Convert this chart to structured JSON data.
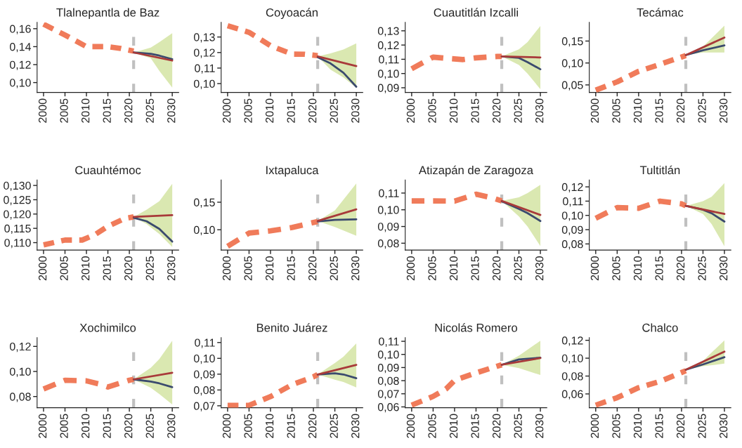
{
  "chart_data": [
    {
      "type": "line",
      "title": "Tlalnepantla de Baz",
      "xlim": [
        1998.5,
        2031.5
      ],
      "xticks": [
        2000,
        2005,
        2010,
        2015,
        2020,
        2025,
        2030
      ],
      "ylim": [
        0.089,
        0.167
      ],
      "yticks": [
        {
          "value": 0.1,
          "label": "0,10"
        },
        {
          "value": 0.12,
          "label": "0,12"
        },
        {
          "value": 0.14,
          "label": "0,14"
        },
        {
          "value": 0.16,
          "label": "0,16"
        }
      ],
      "ref_lines": [
        {
          "axis": "x",
          "value": 2021,
          "color": "#c0c0c0",
          "line_style": "dashed"
        }
      ],
      "series": [
        {
          "color": "#f07b5a",
          "line_style": "dashed",
          "x": [
            2000,
            2005,
            2010,
            2012,
            2015,
            2018,
            2021
          ],
          "values": [
            0.165,
            0.153,
            0.14,
            0.14,
            0.14,
            0.138,
            0.135
          ]
        },
        {
          "color": "#3b4a6e",
          "line_style": "solid",
          "x": [
            2021,
            2025,
            2027,
            2030
          ],
          "values": [
            0.1335,
            0.132,
            0.13,
            0.126
          ],
          "lower": [
            0.1335,
            0.127,
            0.113,
            0.0945
          ],
          "upper": [
            0.1335,
            0.139,
            0.145,
            0.155
          ]
        },
        {
          "color": "#a83a3a",
          "line_style": "solid",
          "x": [
            2021,
            2030
          ],
          "values": [
            0.1335,
            0.1245
          ]
        }
      ]
    },
    {
      "type": "line",
      "title": "Coyoacán",
      "xlim": [
        1998.5,
        2031.5
      ],
      "xticks": [
        2000,
        2005,
        2010,
        2015,
        2020,
        2025,
        2030
      ],
      "ylim": [
        0.0943,
        0.1394
      ],
      "yticks": [
        {
          "value": 0.1,
          "label": "0,10"
        },
        {
          "value": 0.11,
          "label": "0,11"
        },
        {
          "value": 0.12,
          "label": "0,12"
        },
        {
          "value": 0.13,
          "label": "0,13"
        }
      ],
      "ref_lines": [
        {
          "axis": "x",
          "value": 2021,
          "color": "#c0c0c0",
          "line_style": "dashed"
        }
      ],
      "series": [
        {
          "color": "#f07b5a",
          "line_style": "dashed",
          "x": [
            2000,
            2005,
            2010,
            2015,
            2018,
            2021
          ],
          "values": [
            0.1373,
            0.133,
            0.1244,
            0.119,
            0.1189,
            0.118
          ]
        },
        {
          "color": "#3b4a6e",
          "line_style": "solid",
          "x": [
            2021,
            2024,
            2027,
            2030
          ],
          "values": [
            0.117,
            0.113,
            0.107,
            0.098
          ],
          "lower": [
            0.1175,
            0.109,
            0.104,
            0.0973
          ],
          "upper": [
            0.1175,
            0.1195,
            0.122,
            0.1259
          ]
        },
        {
          "color": "#a83a3a",
          "line_style": "solid",
          "x": [
            2021,
            2030
          ],
          "values": [
            0.1175,
            0.1113
          ]
        }
      ]
    },
    {
      "type": "line",
      "title": "Cuautitlán Izcalli",
      "xlim": [
        1998.5,
        2031.5
      ],
      "xticks": [
        2000,
        2005,
        2010,
        2015,
        2020,
        2025,
        2030
      ],
      "ylim": [
        0.0867,
        0.1359
      ],
      "yticks": [
        {
          "value": 0.09,
          "label": "0,09"
        },
        {
          "value": 0.1,
          "label": "0,10"
        },
        {
          "value": 0.11,
          "label": "0,11"
        },
        {
          "value": 0.12,
          "label": "0,12"
        },
        {
          "value": 0.13,
          "label": "0,13"
        }
      ],
      "ref_lines": [
        {
          "axis": "x",
          "value": 2021,
          "color": "#c0c0c0",
          "line_style": "dashed"
        }
      ],
      "series": [
        {
          "color": "#f07b5a",
          "line_style": "dashed",
          "x": [
            2000,
            2005,
            2008,
            2012,
            2015,
            2020,
            2021
          ],
          "values": [
            0.1033,
            0.1115,
            0.1107,
            0.1098,
            0.111,
            0.112,
            0.112
          ]
        },
        {
          "color": "#3b4a6e",
          "line_style": "solid",
          "x": [
            2021,
            2025,
            2027,
            2030
          ],
          "values": [
            0.112,
            0.111,
            0.108,
            0.103
          ],
          "lower": [
            0.112,
            0.106,
            0.1,
            0.089
          ],
          "upper": [
            0.112,
            0.117,
            0.122,
            0.1334
          ]
        },
        {
          "color": "#a83a3a",
          "line_style": "solid",
          "x": [
            2021,
            2030
          ],
          "values": [
            0.112,
            0.1113
          ]
        }
      ]
    },
    {
      "type": "line",
      "title": "Tecámac",
      "xlim": [
        1998.5,
        2031.5
      ],
      "xticks": [
        2000,
        2005,
        2010,
        2015,
        2020,
        2025,
        2030
      ],
      "ylim": [
        0.0328,
        0.1925
      ],
      "yticks": [
        {
          "value": 0.05,
          "label": "0,05"
        },
        {
          "value": 0.1,
          "label": "0,10"
        },
        {
          "value": 0.15,
          "label": "0,15"
        }
      ],
      "ref_lines": [
        {
          "axis": "x",
          "value": 2021,
          "color": "#c0c0c0",
          "line_style": "dashed"
        }
      ],
      "series": [
        {
          "color": "#f07b5a",
          "line_style": "dashed",
          "x": [
            2000,
            2005,
            2010,
            2015,
            2021
          ],
          "values": [
            0.038,
            0.057,
            0.081,
            0.097,
            0.117
          ]
        },
        {
          "color": "#3b4a6e",
          "line_style": "solid",
          "x": [
            2021,
            2025,
            2030
          ],
          "values": [
            0.118,
            0.129,
            0.14
          ],
          "lower": [
            0.118,
            0.124,
            0.124
          ],
          "upper": [
            0.118,
            0.137,
            0.185
          ]
        },
        {
          "color": "#a83a3a",
          "line_style": "solid",
          "x": [
            2021,
            2030
          ],
          "values": [
            0.118,
            0.158
          ]
        }
      ]
    },
    {
      "type": "line",
      "title": "Cuauhtémoc",
      "xlim": [
        1998.5,
        2031.5
      ],
      "xticks": [
        2000,
        2005,
        2010,
        2015,
        2020,
        2025,
        2030
      ],
      "ylim": [
        0.1074,
        0.1319
      ],
      "yticks": [
        {
          "value": 0.11,
          "label": "0,110"
        },
        {
          "value": 0.115,
          "label": "0,115"
        },
        {
          "value": 0.12,
          "label": "0,120"
        },
        {
          "value": 0.125,
          "label": "0,125"
        },
        {
          "value": 0.13,
          "label": "0,130"
        }
      ],
      "ref_lines": [
        {
          "axis": "x",
          "value": 2021,
          "color": "#c0c0c0",
          "line_style": "dashed"
        }
      ],
      "series": [
        {
          "color": "#f07b5a",
          "line_style": "dashed",
          "x": [
            2000,
            2005,
            2009,
            2012,
            2015,
            2019,
            2021
          ],
          "values": [
            0.1092,
            0.1109,
            0.1109,
            0.1128,
            0.1157,
            0.1185,
            0.119
          ]
        },
        {
          "color": "#3b4a6e",
          "line_style": "solid",
          "x": [
            2021,
            2024,
            2027,
            2030
          ],
          "values": [
            0.1187,
            0.1175,
            0.1148,
            0.1104
          ],
          "lower": [
            0.119,
            0.1165,
            0.113,
            0.1085
          ],
          "upper": [
            0.119,
            0.1215,
            0.1245,
            0.1306
          ]
        },
        {
          "color": "#a83a3a",
          "line_style": "solid",
          "x": [
            2021,
            2030
          ],
          "values": [
            0.119,
            0.1196
          ]
        }
      ]
    },
    {
      "type": "line",
      "title": "Ixtapaluca",
      "xlim": [
        1998.5,
        2031.5
      ],
      "xticks": [
        2000,
        2005,
        2010,
        2015,
        2020,
        2025,
        2030
      ],
      "ylim": [
        0.0631,
        0.1903
      ],
      "yticks": [
        {
          "value": 0.1,
          "label": "0,10"
        },
        {
          "value": 0.15,
          "label": "0,15"
        }
      ],
      "ref_lines": [
        {
          "axis": "x",
          "value": 2021,
          "color": "#c0c0c0",
          "line_style": "dashed"
        }
      ],
      "series": [
        {
          "color": "#f07b5a",
          "line_style": "dashed",
          "x": [
            2000,
            2005,
            2010,
            2015,
            2021
          ],
          "values": [
            0.07,
            0.094,
            0.098,
            0.104,
            0.115
          ]
        },
        {
          "color": "#3b4a6e",
          "line_style": "solid",
          "x": [
            2021,
            2025,
            2030
          ],
          "values": [
            0.115,
            0.118,
            0.119
          ],
          "lower": [
            0.116,
            0.105,
            0.089
          ],
          "upper": [
            0.116,
            0.135,
            0.184
          ]
        },
        {
          "color": "#a83a3a",
          "line_style": "solid",
          "x": [
            2021,
            2030
          ],
          "values": [
            0.116,
            0.137
          ]
        }
      ]
    },
    {
      "type": "line",
      "title": "Atizapán de Zaragoza",
      "xlim": [
        1998.5,
        2031.5
      ],
      "xticks": [
        2000,
        2005,
        2010,
        2015,
        2020,
        2025,
        2030
      ],
      "ylim": [
        0.0759,
        0.1178
      ],
      "yticks": [
        {
          "value": 0.08,
          "label": "0,08"
        },
        {
          "value": 0.09,
          "label": "0,09"
        },
        {
          "value": 0.1,
          "label": "0,10"
        },
        {
          "value": 0.11,
          "label": "0,11"
        }
      ],
      "ref_lines": [
        {
          "axis": "x",
          "value": 2021,
          "color": "#c0c0c0",
          "line_style": "dashed"
        }
      ],
      "series": [
        {
          "color": "#f07b5a",
          "line_style": "dashed",
          "x": [
            2000,
            2005,
            2010,
            2015,
            2019,
            2021
          ],
          "values": [
            0.1053,
            0.1053,
            0.1052,
            0.1093,
            0.107,
            0.1053
          ]
        },
        {
          "color": "#3b4a6e",
          "line_style": "solid",
          "x": [
            2021,
            2025,
            2027,
            2030
          ],
          "values": [
            0.105,
            0.1005,
            0.098,
            0.0933
          ],
          "lower": [
            0.1053,
            0.096,
            0.09,
            0.0783
          ],
          "upper": [
            0.1053,
            0.1075,
            0.11,
            0.1149
          ]
        },
        {
          "color": "#a83a3a",
          "line_style": "solid",
          "x": [
            2021,
            2030
          ],
          "values": [
            0.1053,
            0.0969
          ]
        }
      ]
    },
    {
      "type": "line",
      "title": "Tultitlán",
      "xlim": [
        1998.5,
        2031.5
      ],
      "xticks": [
        2000,
        2005,
        2010,
        2015,
        2020,
        2025,
        2030
      ],
      "ylim": [
        0.0757,
        0.1248
      ],
      "yticks": [
        {
          "value": 0.08,
          "label": "0,08"
        },
        {
          "value": 0.09,
          "label": "0,09"
        },
        {
          "value": 0.1,
          "label": "0,10"
        },
        {
          "value": 0.11,
          "label": "0,11"
        },
        {
          "value": 0.12,
          "label": "0,12"
        }
      ],
      "ref_lines": [
        {
          "axis": "x",
          "value": 2021,
          "color": "#c0c0c0",
          "line_style": "dashed"
        }
      ],
      "series": [
        {
          "color": "#f07b5a",
          "line_style": "dashed",
          "x": [
            2000,
            2005,
            2010,
            2015,
            2020,
            2021
          ],
          "values": [
            0.098,
            0.1055,
            0.105,
            0.11,
            0.1081,
            0.1067
          ]
        },
        {
          "color": "#3b4a6e",
          "line_style": "solid",
          "x": [
            2021,
            2025,
            2027,
            2030
          ],
          "values": [
            0.1067,
            0.104,
            0.1015,
            0.0957
          ],
          "lower": [
            0.1067,
            0.101,
            0.094,
            0.0783
          ],
          "upper": [
            0.1067,
            0.11,
            0.113,
            0.1226
          ]
        },
        {
          "color": "#a83a3a",
          "line_style": "solid",
          "x": [
            2021,
            2030
          ],
          "values": [
            0.1067,
            0.101
          ]
        }
      ]
    },
    {
      "type": "line",
      "title": "Xochimilco",
      "xlim": [
        1998.5,
        2031.5
      ],
      "xticks": [
        2000,
        2005,
        2010,
        2015,
        2020,
        2025,
        2030
      ],
      "ylim": [
        0.0711,
        0.127
      ],
      "yticks": [
        {
          "value": 0.08,
          "label": "0,08"
        },
        {
          "value": 0.1,
          "label": "0,10"
        },
        {
          "value": 0.12,
          "label": "0,12"
        }
      ],
      "ref_lines": [
        {
          "axis": "x",
          "value": 2021,
          "color": "#c0c0c0",
          "line_style": "dashed"
        }
      ],
      "series": [
        {
          "color": "#f07b5a",
          "line_style": "dashed",
          "x": [
            2000,
            2005,
            2010,
            2013,
            2015,
            2020,
            2021
          ],
          "values": [
            0.086,
            0.093,
            0.0925,
            0.09,
            0.0876,
            0.093,
            0.0937
          ]
        },
        {
          "color": "#3b4a6e",
          "line_style": "solid",
          "x": [
            2021,
            2025,
            2027,
            2030
          ],
          "values": [
            0.0937,
            0.092,
            0.0905,
            0.0875
          ],
          "lower": [
            0.0937,
            0.087,
            0.082,
            0.0737
          ],
          "upper": [
            0.0937,
            0.103,
            0.11,
            0.1245
          ]
        },
        {
          "color": "#a83a3a",
          "line_style": "solid",
          "x": [
            2021,
            2030
          ],
          "values": [
            0.0937,
            0.099
          ]
        }
      ]
    },
    {
      "type": "line",
      "title": "Benito Juárez",
      "xlim": [
        1998.5,
        2031.5
      ],
      "xticks": [
        2000,
        2005,
        2010,
        2015,
        2020,
        2025,
        2030
      ],
      "ylim": [
        0.0688,
        0.1131
      ],
      "yticks": [
        {
          "value": 0.07,
          "label": "0,07"
        },
        {
          "value": 0.08,
          "label": "0,08"
        },
        {
          "value": 0.09,
          "label": "0,09"
        },
        {
          "value": 0.1,
          "label": "0,10"
        },
        {
          "value": 0.11,
          "label": "0,11"
        }
      ],
      "ref_lines": [
        {
          "axis": "x",
          "value": 2021,
          "color": "#c0c0c0",
          "line_style": "dashed"
        }
      ],
      "series": [
        {
          "color": "#f07b5a",
          "line_style": "dashed",
          "x": [
            2000,
            2005,
            2010,
            2015,
            2020,
            2021
          ],
          "values": [
            0.0703,
            0.0703,
            0.0758,
            0.0833,
            0.0883,
            0.0898
          ]
        },
        {
          "color": "#3b4a6e",
          "line_style": "solid",
          "x": [
            2021,
            2025,
            2027,
            2030
          ],
          "values": [
            0.0898,
            0.0905,
            0.0898,
            0.0874
          ],
          "lower": [
            0.0898,
            0.0865,
            0.085,
            0.0816
          ],
          "upper": [
            0.0898,
            0.097,
            0.101,
            0.1095
          ]
        },
        {
          "color": "#a83a3a",
          "line_style": "solid",
          "x": [
            2021,
            2030
          ],
          "values": [
            0.0898,
            0.0959
          ]
        }
      ]
    },
    {
      "type": "line",
      "title": "Nicolás Romero",
      "xlim": [
        1998.5,
        2031.5
      ],
      "xticks": [
        2000,
        2005,
        2010,
        2015,
        2020,
        2025,
        2030
      ],
      "ylim": [
        0.0594,
        0.1128
      ],
      "yticks": [
        {
          "value": 0.06,
          "label": "0,06"
        },
        {
          "value": 0.07,
          "label": "0,07"
        },
        {
          "value": 0.08,
          "label": "0,08"
        },
        {
          "value": 0.09,
          "label": "0,09"
        },
        {
          "value": 0.1,
          "label": "0,10"
        },
        {
          "value": 0.11,
          "label": "0,11"
        }
      ],
      "ref_lines": [
        {
          "axis": "x",
          "value": 2021,
          "color": "#c0c0c0",
          "line_style": "dashed"
        }
      ],
      "series": [
        {
          "color": "#f07b5a",
          "line_style": "dashed",
          "x": [
            2000,
            2005,
            2008,
            2010,
            2015,
            2021
          ],
          "values": [
            0.0613,
            0.068,
            0.0736,
            0.0802,
            0.0859,
            0.0921
          ]
        },
        {
          "color": "#3b4a6e",
          "line_style": "solid",
          "x": [
            2021,
            2025,
            2030
          ],
          "values": [
            0.0921,
            0.0962,
            0.0975
          ],
          "lower": [
            0.0921,
            0.0895,
            0.0843
          ],
          "upper": [
            0.0921,
            0.099,
            0.1104
          ]
        },
        {
          "color": "#a83a3a",
          "line_style": "solid",
          "x": [
            2021,
            2030
          ],
          "values": [
            0.0921,
            0.0972
          ]
        }
      ]
    },
    {
      "type": "line",
      "title": "Chalco",
      "xlim": [
        1998.5,
        2031.5
      ],
      "xticks": [
        2000,
        2005,
        2010,
        2015,
        2020,
        2025,
        2030
      ],
      "ylim": [
        0.0446,
        0.123
      ],
      "yticks": [
        {
          "value": 0.06,
          "label": "0,06"
        },
        {
          "value": 0.08,
          "label": "0,08"
        },
        {
          "value": 0.1,
          "label": "0,10"
        },
        {
          "value": 0.12,
          "label": "0,12"
        }
      ],
      "ref_lines": [
        {
          "axis": "x",
          "value": 2021,
          "color": "#c0c0c0",
          "line_style": "dashed"
        }
      ],
      "series": [
        {
          "color": "#f07b5a",
          "line_style": "dashed",
          "x": [
            2000,
            2005,
            2010,
            2015,
            2021
          ],
          "values": [
            0.0474,
            0.0558,
            0.067,
            0.074,
            0.086
          ]
        },
        {
          "color": "#3b4a6e",
          "line_style": "solid",
          "x": [
            2021,
            2025,
            2030
          ],
          "values": [
            0.0871,
            0.093,
            0.1011
          ],
          "lower": [
            0.0871,
            0.091,
            0.0939
          ],
          "upper": [
            0.0871,
            0.097,
            0.12
          ]
        },
        {
          "color": "#a83a3a",
          "line_style": "solid",
          "x": [
            2021,
            2030
          ],
          "values": [
            0.0871,
            0.1073
          ]
        }
      ]
    }
  ]
}
